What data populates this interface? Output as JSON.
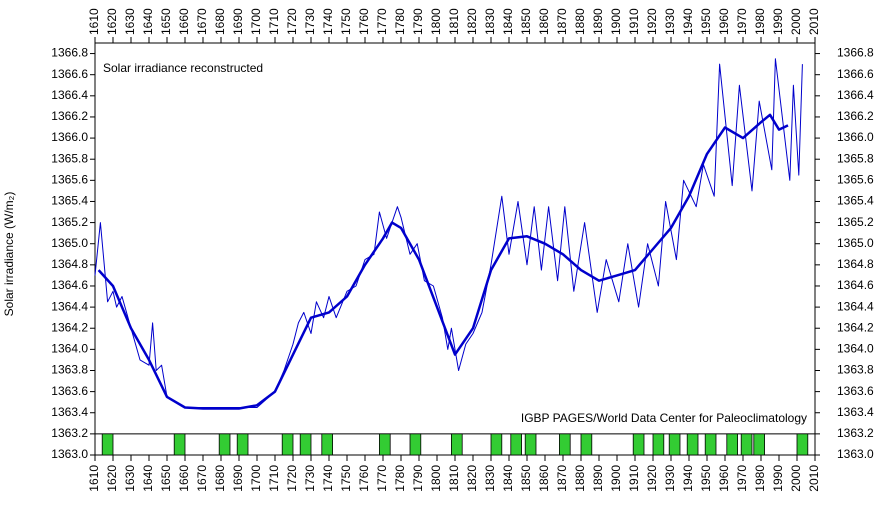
{
  "chart_data": {
    "type": "line",
    "title": "Solar irradiance reconstructed",
    "annotation": "IGBP PAGES/World Data Center for Paleoclimatology",
    "y_label": "Solar irradiance (W/m₂)",
    "xlim": [
      1610,
      2010
    ],
    "ylim": [
      1363.0,
      1366.9
    ],
    "xticks": [
      1610,
      1620,
      1630,
      1640,
      1650,
      1660,
      1670,
      1680,
      1690,
      1700,
      1710,
      1720,
      1730,
      1740,
      1750,
      1760,
      1770,
      1780,
      1790,
      1800,
      1810,
      1820,
      1830,
      1840,
      1850,
      1860,
      1870,
      1880,
      1890,
      1900,
      1910,
      1920,
      1930,
      1940,
      1950,
      1960,
      1970,
      1980,
      1990,
      2000,
      2010
    ],
    "yticks": [
      {
        "value": 1363,
        "label": "1363.0"
      },
      1363.2,
      1363.4,
      1363.6,
      1363.8,
      {
        "value": 1364,
        "label": "1364.0"
      },
      1364.2,
      1364.4,
      1364.6,
      1364.8,
      {
        "value": 1365,
        "label": "1365.0"
      },
      1365.2,
      1365.4,
      1365.6,
      1365.8,
      {
        "value": 1366,
        "label": "1366.0"
      },
      1366.2,
      1366.4,
      1366.6,
      1366.8
    ],
    "strip_top": 1363.2,
    "marker_color": "#33cc33",
    "markers": [
      [
        1614,
        1620
      ],
      [
        1654,
        1660
      ],
      [
        1679,
        1685
      ],
      [
        1689,
        1695
      ],
      [
        1714,
        1720
      ],
      [
        1724,
        1730
      ],
      [
        1736,
        1742
      ],
      [
        1768,
        1774
      ],
      [
        1785,
        1791
      ],
      [
        1808,
        1814
      ],
      [
        1830,
        1836
      ],
      [
        1841,
        1847
      ],
      [
        1849,
        1855
      ],
      [
        1868,
        1874
      ],
      [
        1880,
        1886
      ],
      [
        1909,
        1915
      ],
      [
        1920,
        1926
      ],
      [
        1929,
        1935
      ],
      [
        1939,
        1945
      ],
      [
        1949,
        1955
      ],
      [
        1961,
        1967
      ],
      [
        1969,
        1975
      ],
      [
        1976,
        1982
      ],
      [
        2000,
        2006
      ]
    ],
    "series": [
      {
        "color": "#0000cc",
        "width": 1,
        "x": [
          1610,
          1613,
          1617,
          1620,
          1622,
          1625,
          1630,
          1635,
          1640,
          1642,
          1644,
          1647,
          1650,
          1660,
          1700,
          1710,
          1715,
          1720,
          1723,
          1726,
          1730,
          1733,
          1737,
          1740,
          1744,
          1750,
          1755,
          1760,
          1765,
          1768,
          1772,
          1778,
          1780,
          1785,
          1789,
          1793,
          1798,
          1803,
          1806,
          1808,
          1812,
          1816,
          1820,
          1825,
          1830,
          1836,
          1840,
          1845,
          1850,
          1854,
          1858,
          1862,
          1867,
          1871,
          1876,
          1882,
          1889,
          1894,
          1901,
          1906,
          1912,
          1917,
          1923,
          1927,
          1933,
          1937,
          1944,
          1948,
          1954,
          1957,
          1964,
          1968,
          1975,
          1979,
          1986,
          1988,
          1996,
          1998,
          2001,
          2003
        ],
        "values": [
          1364.7,
          1365.2,
          1364.45,
          1364.55,
          1364.4,
          1364.5,
          1364.2,
          1363.9,
          1363.85,
          1364.25,
          1363.8,
          1363.85,
          1363.55,
          1363.45,
          1363.45,
          1363.6,
          1363.8,
          1364.05,
          1364.25,
          1364.35,
          1364.15,
          1364.45,
          1364.3,
          1364.5,
          1364.3,
          1364.55,
          1364.6,
          1364.85,
          1364.9,
          1365.3,
          1365.05,
          1365.35,
          1365.25,
          1364.9,
          1365.0,
          1364.65,
          1364.6,
          1364.3,
          1364.0,
          1364.2,
          1363.8,
          1364.05,
          1364.15,
          1364.35,
          1364.8,
          1365.45,
          1364.9,
          1365.4,
          1364.8,
          1365.35,
          1364.75,
          1365.35,
          1364.65,
          1365.35,
          1364.55,
          1365.2,
          1364.35,
          1364.85,
          1364.45,
          1365.0,
          1364.4,
          1365.0,
          1364.6,
          1365.4,
          1364.85,
          1365.6,
          1365.35,
          1365.75,
          1365.45,
          1366.7,
          1365.55,
          1366.5,
          1365.5,
          1366.35,
          1365.7,
          1366.75,
          1365.6,
          1366.5,
          1365.65,
          1366.7
        ]
      },
      {
        "color": "#0000cc",
        "width": 2.5,
        "x": [
          1612,
          1620,
          1630,
          1640,
          1650,
          1660,
          1670,
          1680,
          1690,
          1700,
          1710,
          1720,
          1730,
          1740,
          1750,
          1760,
          1770,
          1775,
          1780,
          1790,
          1800,
          1810,
          1820,
          1830,
          1840,
          1850,
          1860,
          1870,
          1880,
          1890,
          1900,
          1910,
          1920,
          1930,
          1940,
          1950,
          1960,
          1970,
          1980,
          1985,
          1990,
          1995
        ],
        "values": [
          1364.75,
          1364.6,
          1364.2,
          1363.9,
          1363.55,
          1363.45,
          1363.44,
          1363.44,
          1363.44,
          1363.47,
          1363.6,
          1363.95,
          1364.3,
          1364.35,
          1364.5,
          1364.8,
          1365.05,
          1365.2,
          1365.15,
          1364.85,
          1364.4,
          1363.95,
          1364.2,
          1364.75,
          1365.05,
          1365.07,
          1365.0,
          1364.9,
          1364.75,
          1364.65,
          1364.7,
          1364.75,
          1364.95,
          1365.15,
          1365.45,
          1365.85,
          1366.1,
          1366.0,
          1366.15,
          1366.22,
          1366.08,
          1366.12
        ]
      }
    ]
  }
}
